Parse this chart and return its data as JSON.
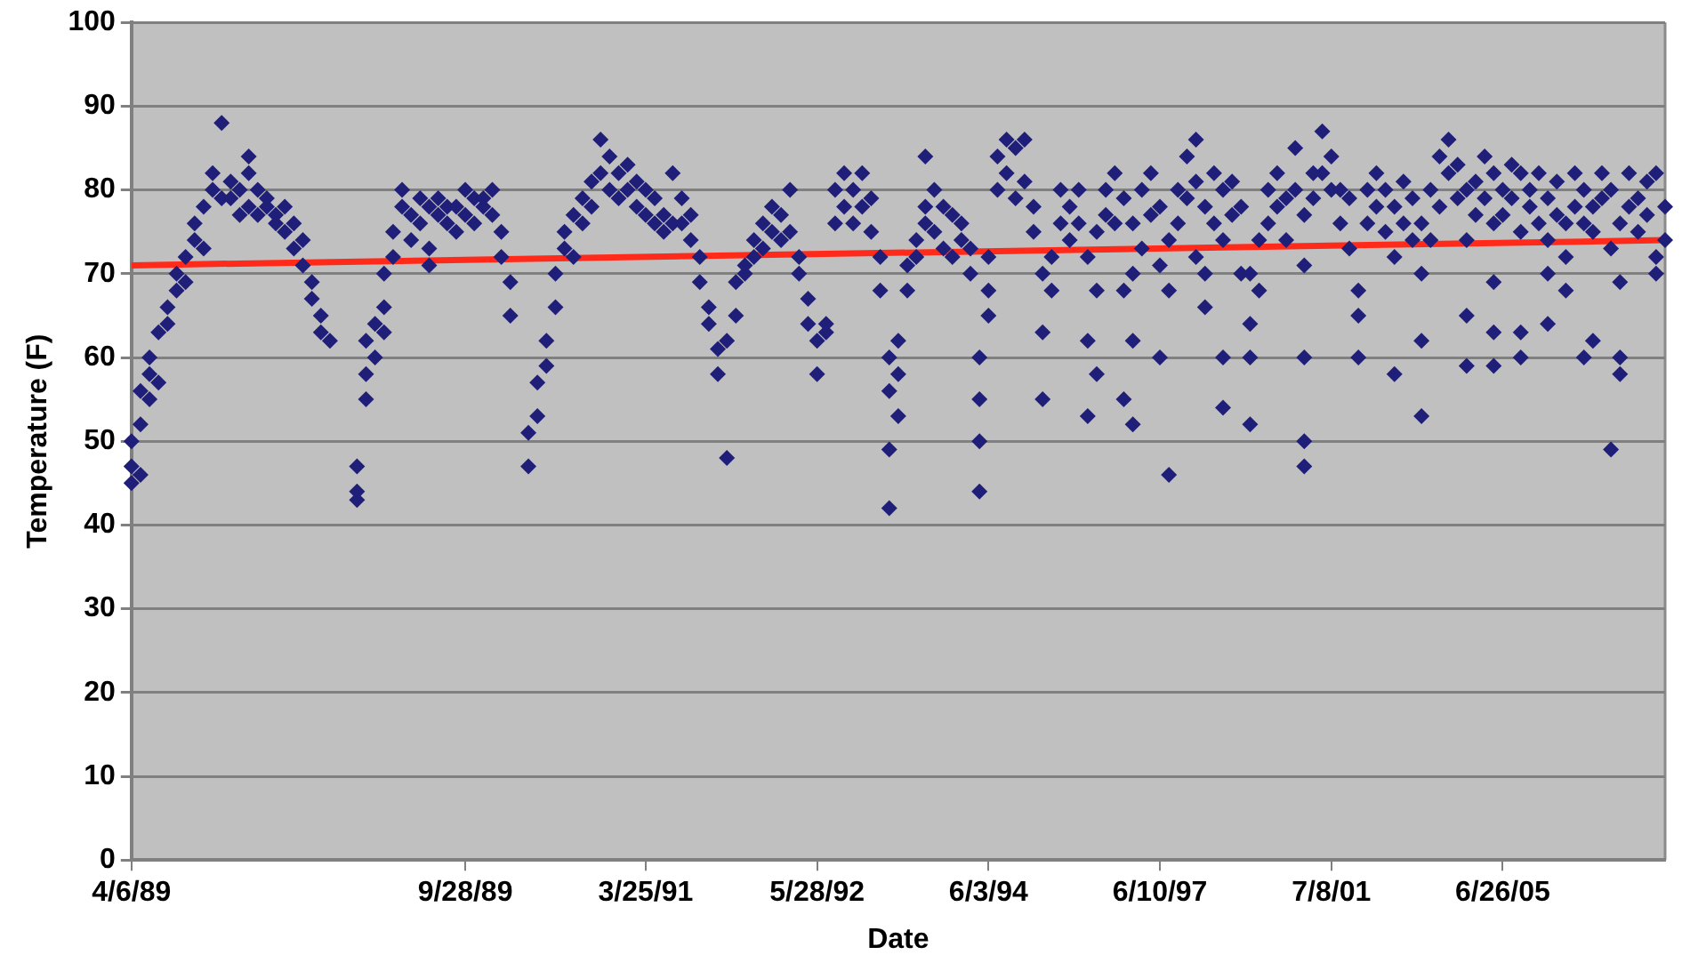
{
  "chart_data": {
    "type": "scatter",
    "xlabel": "Date",
    "ylabel": "Temperature (F)",
    "categories": [
      "4/6/89",
      null,
      null,
      null,
      null,
      null,
      null,
      null,
      null,
      null,
      null,
      null,
      null,
      null,
      null,
      null,
      null,
      null,
      null,
      null,
      null,
      null,
      null,
      null,
      null,
      null,
      null,
      null,
      null,
      null,
      null,
      null,
      null,
      null,
      null,
      null,
      null,
      "9/28/89",
      null,
      null,
      null,
      null,
      null,
      null,
      null,
      null,
      null,
      null,
      null,
      null,
      null,
      null,
      null,
      null,
      null,
      null,
      null,
      "3/25/91",
      null,
      null,
      null,
      null,
      null,
      null,
      null,
      null,
      null,
      null,
      null,
      null,
      null,
      null,
      null,
      null,
      null,
      null,
      "5/28/92",
      null,
      null,
      null,
      null,
      null,
      null,
      null,
      null,
      null,
      null,
      null,
      null,
      null,
      null,
      null,
      null,
      null,
      null,
      "6/3/94",
      null,
      null,
      null,
      null,
      null,
      null,
      null,
      null,
      null,
      null,
      null,
      null,
      null,
      null,
      null,
      null,
      null,
      null,
      "6/10/97",
      null,
      null,
      null,
      null,
      null,
      null,
      null,
      null,
      null,
      null,
      null,
      null,
      null,
      null,
      null,
      null,
      null,
      null,
      "7/8/01",
      null,
      null,
      null,
      null,
      null,
      null,
      null,
      null,
      null,
      null,
      null,
      null,
      null,
      null,
      null,
      null,
      null,
      null,
      "6/26/05",
      null,
      null,
      null,
      null,
      null,
      null,
      null,
      null,
      null,
      null,
      null,
      null,
      null,
      null,
      null,
      null,
      null,
      null
    ],
    "ylim": [
      0,
      100
    ],
    "yticks": [
      0,
      10,
      20,
      30,
      40,
      50,
      60,
      70,
      80,
      90,
      100
    ],
    "grid": "y",
    "legend": false,
    "series": [
      {
        "type": "scatter",
        "marker": "diamond",
        "color": "#1f1f7a",
        "values": [
          45,
          46,
          55,
          57,
          64,
          68,
          69,
          74,
          73,
          80,
          88,
          81,
          80,
          84,
          80,
          79,
          77,
          78,
          76,
          74,
          69,
          65,
          62,
          null,
          null,
          43,
          55,
          60,
          63,
          72,
          78,
          77,
          76,
          78,
          77,
          76,
          78,
          80,
          79,
          79,
          80,
          75,
          69,
          null,
          47,
          53,
          59,
          66,
          73,
          77,
          79,
          81,
          86,
          84,
          82,
          83,
          81,
          80,
          79,
          77,
          82,
          79,
          77,
          72,
          66,
          61,
          48,
          65,
          71,
          74,
          76,
          78,
          77,
          80,
          72,
          67,
          62,
          64,
          76,
          82,
          80,
          82,
          79,
          72,
          60,
          62,
          68,
          74,
          78,
          80,
          78,
          77,
          76,
          73,
          60,
          65,
          80,
          86,
          85,
          86,
          78,
          70,
          68,
          76,
          78,
          80,
          72,
          75,
          80,
          82,
          79,
          76,
          80,
          82,
          78,
          74,
          80,
          84,
          86,
          78,
          82,
          80,
          81,
          78,
          70,
          74,
          80,
          82,
          79,
          85,
          77,
          82,
          87,
          84,
          80,
          79,
          68,
          80,
          82,
          80,
          78,
          81,
          79,
          76,
          80,
          84,
          86,
          83,
          80,
          81,
          84,
          82,
          80,
          83,
          82,
          80,
          82,
          79,
          81,
          76,
          82,
          80,
          78,
          82,
          80,
          76,
          82,
          79,
          81,
          82,
          78
        ]
      },
      {
        "type": "scatter",
        "marker": "diamond",
        "color": "#1f1f7a",
        "values": [
          47,
          52,
          58,
          63,
          66,
          70,
          72,
          76,
          78,
          82,
          79,
          79,
          77,
          82,
          77,
          78,
          76,
          75,
          73,
          71,
          67,
          63,
          null,
          null,
          null,
          44,
          58,
          64,
          66,
          75,
          80,
          74,
          79,
          73,
          79,
          78,
          75,
          77,
          76,
          78,
          77,
          72,
          65,
          null,
          51,
          57,
          62,
          70,
          75,
          72,
          76,
          78,
          82,
          80,
          79,
          80,
          78,
          77,
          76,
          75,
          76,
          76,
          74,
          69,
          64,
          58,
          62,
          69,
          70,
          72,
          73,
          75,
          74,
          75,
          70,
          64,
          58,
          63,
          80,
          78,
          76,
          78,
          75,
          68,
          56,
          58,
          71,
          72,
          84,
          75,
          73,
          72,
          74,
          70,
          55,
          68,
          84,
          82,
          79,
          81,
          75,
          63,
          72,
          80,
          74,
          76,
          62,
          68,
          77,
          76,
          68,
          70,
          73,
          77,
          71,
          68,
          76,
          79,
          81,
          70,
          76,
          74,
          77,
          70,
          64,
          68,
          76,
          78,
          74,
          80,
          71,
          79,
          82,
          80,
          76,
          73,
          65,
          76,
          78,
          75,
          72,
          76,
          74,
          70,
          74,
          78,
          82,
          79,
          74,
          77,
          79,
          76,
          77,
          79,
          75,
          78,
          76,
          74,
          77,
          72,
          78,
          76,
          75,
          79,
          73,
          69,
          78,
          75,
          77,
          72,
          74
        ]
      },
      {
        "type": "scatter",
        "marker": "diamond",
        "color": "#1f1f7a",
        "values": [
          50,
          56,
          60,
          null,
          null,
          null,
          null,
          null,
          null,
          null,
          null,
          null,
          null,
          78,
          null,
          null,
          null,
          null,
          null,
          null,
          null,
          null,
          null,
          null,
          null,
          47,
          62,
          null,
          70,
          null,
          null,
          null,
          null,
          71,
          null,
          null,
          null,
          null,
          null,
          null,
          null,
          null,
          null,
          null,
          null,
          null,
          null,
          null,
          null,
          null,
          null,
          null,
          null,
          null,
          null,
          null,
          null,
          null,
          null,
          null,
          null,
          null,
          null,
          null,
          null,
          null,
          null,
          null,
          null,
          null,
          null,
          null,
          null,
          null,
          null,
          null,
          null,
          null,
          null,
          null,
          null,
          null,
          null,
          null,
          49,
          53,
          null,
          null,
          76,
          null,
          null,
          null,
          null,
          null,
          50,
          72,
          null,
          null,
          null,
          null,
          null,
          55,
          null,
          null,
          null,
          null,
          53,
          58,
          null,
          null,
          55,
          62,
          null,
          null,
          60,
          46,
          null,
          null,
          72,
          66,
          null,
          60,
          null,
          null,
          60,
          null,
          null,
          null,
          null,
          null,
          60,
          null,
          null,
          null,
          null,
          null,
          60,
          null,
          null,
          null,
          58,
          null,
          null,
          62,
          null,
          null,
          null,
          null,
          65,
          null,
          null,
          69,
          null,
          null,
          63,
          null,
          null,
          70,
          null,
          68,
          null,
          60,
          62,
          null,
          49,
          60,
          null,
          null,
          null,
          70,
          null
        ]
      },
      {
        "type": "scatter",
        "marker": "diamond",
        "color": "#1f1f7a",
        "values": [
          null,
          null,
          null,
          null,
          null,
          null,
          null,
          null,
          null,
          null,
          null,
          null,
          null,
          null,
          null,
          null,
          null,
          null,
          null,
          null,
          null,
          null,
          null,
          null,
          null,
          null,
          null,
          null,
          null,
          null,
          null,
          null,
          null,
          null,
          null,
          null,
          null,
          null,
          null,
          null,
          null,
          null,
          null,
          null,
          null,
          null,
          null,
          null,
          null,
          null,
          null,
          null,
          null,
          null,
          null,
          null,
          null,
          null,
          null,
          null,
          null,
          null,
          null,
          null,
          null,
          null,
          null,
          null,
          null,
          null,
          null,
          null,
          null,
          null,
          null,
          null,
          null,
          null,
          null,
          null,
          null,
          null,
          null,
          null,
          42,
          null,
          null,
          null,
          null,
          null,
          null,
          null,
          null,
          null,
          44,
          null,
          null,
          null,
          null,
          null,
          null,
          null,
          null,
          null,
          null,
          null,
          null,
          null,
          null,
          null,
          null,
          52,
          null,
          null,
          null,
          null,
          null,
          null,
          null,
          null,
          null,
          54,
          null,
          null,
          52,
          null,
          null,
          null,
          null,
          null,
          50,
          null,
          null,
          null,
          null,
          null,
          null,
          null,
          null,
          null,
          null,
          null,
          null,
          53,
          null,
          null,
          null,
          null,
          59,
          null,
          null,
          63,
          null,
          null,
          60,
          null,
          null,
          64,
          null,
          null,
          null,
          null,
          null,
          null,
          null,
          58,
          null,
          null,
          null,
          null,
          null
        ]
      },
      {
        "type": "scatter",
        "marker": "diamond",
        "color": "#1f1f7a",
        "values": [
          null,
          null,
          null,
          null,
          null,
          null,
          null,
          null,
          null,
          null,
          null,
          null,
          null,
          null,
          null,
          null,
          null,
          null,
          null,
          null,
          null,
          null,
          null,
          null,
          null,
          null,
          null,
          null,
          null,
          null,
          null,
          null,
          null,
          null,
          null,
          null,
          null,
          null,
          null,
          null,
          null,
          null,
          null,
          null,
          null,
          null,
          null,
          null,
          null,
          null,
          null,
          null,
          null,
          null,
          null,
          null,
          null,
          null,
          null,
          null,
          null,
          null,
          null,
          null,
          null,
          null,
          null,
          null,
          null,
          null,
          null,
          null,
          null,
          null,
          null,
          null,
          null,
          null,
          null,
          null,
          null,
          null,
          null,
          null,
          null,
          null,
          null,
          null,
          null,
          null,
          null,
          null,
          null,
          null,
          null,
          null,
          null,
          null,
          null,
          null,
          null,
          null,
          null,
          null,
          null,
          null,
          null,
          null,
          null,
          null,
          null,
          null,
          null,
          null,
          null,
          null,
          null,
          null,
          null,
          null,
          null,
          null,
          null,
          null,
          null,
          null,
          null,
          null,
          null,
          null,
          47,
          null,
          null,
          null,
          null,
          null,
          null,
          null,
          null,
          null,
          null,
          null,
          null,
          null,
          null,
          null,
          null,
          null,
          null,
          null,
          null,
          59,
          null,
          null,
          null,
          null,
          null,
          null,
          null,
          null,
          null,
          null,
          null,
          null,
          null,
          null,
          null,
          null,
          null,
          null,
          null
        ]
      },
      {
        "type": "line",
        "marker": "none",
        "color": "#ff2a1a",
        "values": [
          71,
          null,
          null,
          null,
          null,
          null,
          null,
          null,
          null,
          null,
          null,
          null,
          null,
          null,
          null,
          null,
          null,
          null,
          null,
          null,
          null,
          null,
          null,
          null,
          null,
          null,
          null,
          null,
          null,
          null,
          null,
          null,
          null,
          null,
          null,
          null,
          null,
          null,
          null,
          null,
          null,
          null,
          null,
          null,
          null,
          null,
          null,
          null,
          null,
          null,
          null,
          null,
          null,
          null,
          null,
          null,
          null,
          null,
          null,
          null,
          null,
          null,
          null,
          null,
          null,
          null,
          null,
          null,
          null,
          null,
          null,
          null,
          null,
          null,
          null,
          null,
          null,
          null,
          null,
          null,
          null,
          null,
          null,
          null,
          null,
          null,
          null,
          null,
          null,
          null,
          null,
          null,
          null,
          null,
          null,
          null,
          null,
          null,
          null,
          null,
          null,
          null,
          null,
          null,
          null,
          null,
          null,
          null,
          null,
          null,
          null,
          null,
          null,
          null,
          null,
          null,
          null,
          null,
          null,
          null,
          null,
          null,
          null,
          null,
          null,
          null,
          null,
          null,
          null,
          null,
          null,
          null,
          null,
          null,
          null,
          null,
          null,
          null,
          null,
          null,
          null,
          null,
          null,
          null,
          null,
          null,
          null,
          null,
          null,
          null,
          null,
          null,
          null,
          null,
          null,
          null,
          null,
          null,
          null,
          null,
          null,
          null,
          null,
          null,
          null,
          null,
          null,
          null,
          null,
          null,
          74
        ]
      }
    ]
  }
}
